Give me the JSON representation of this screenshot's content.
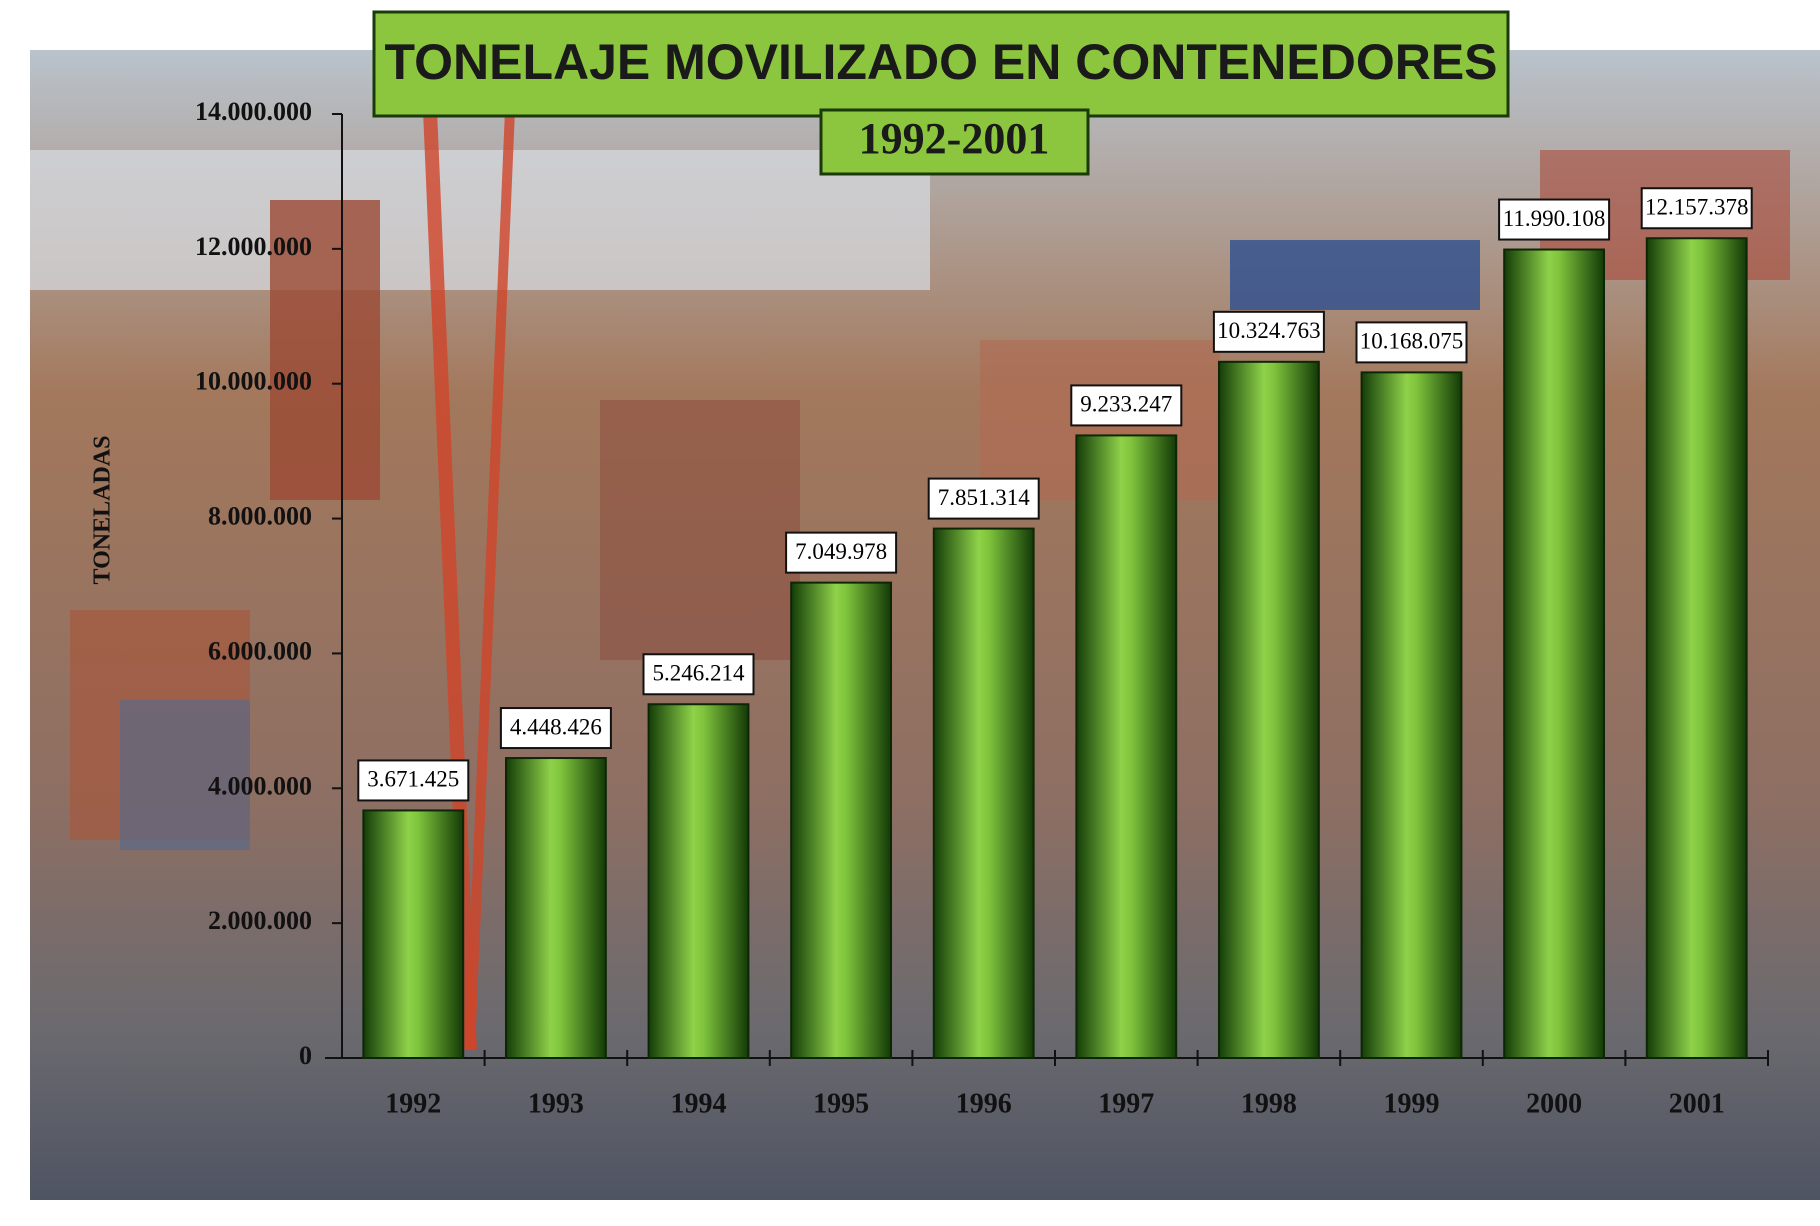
{
  "chart_data": {
    "type": "bar",
    "title": "TONELAJE MOVILIZADO EN CONTENEDORES",
    "subtitle": "1992-2001",
    "y_label": "TONELADAS",
    "categories": [
      "1992",
      "1993",
      "1994",
      "1995",
      "1996",
      "1997",
      "1998",
      "1999",
      "2000",
      "2001"
    ],
    "values": [
      3671425,
      4448426,
      5246214,
      7049978,
      7851314,
      9233247,
      10324763,
      10168075,
      11990108,
      12157378
    ],
    "value_labels": [
      "3.671.425",
      "4.448.426",
      "5.246.214",
      "7.049.978",
      "7.851.314",
      "9.233.247",
      "10.324.763",
      "10.168.075",
      "11.990.108",
      "12.157.378"
    ],
    "color": "#3f9a1c",
    "ylim": [
      0,
      14000000
    ],
    "yticks": [
      {
        "value": 0,
        "label": "0"
      },
      {
        "value": 2000000,
        "label": "2.000.000"
      },
      {
        "value": 4000000,
        "label": "4.000.000"
      },
      {
        "value": 6000000,
        "label": "6.000.000"
      },
      {
        "value": 8000000,
        "label": "8.000.000"
      },
      {
        "value": 10000000,
        "label": "10.000.000"
      },
      {
        "value": 12000000,
        "label": "12.000.000"
      },
      {
        "value": 14000000,
        "label": "14.000.000"
      }
    ],
    "grid": false
  }
}
